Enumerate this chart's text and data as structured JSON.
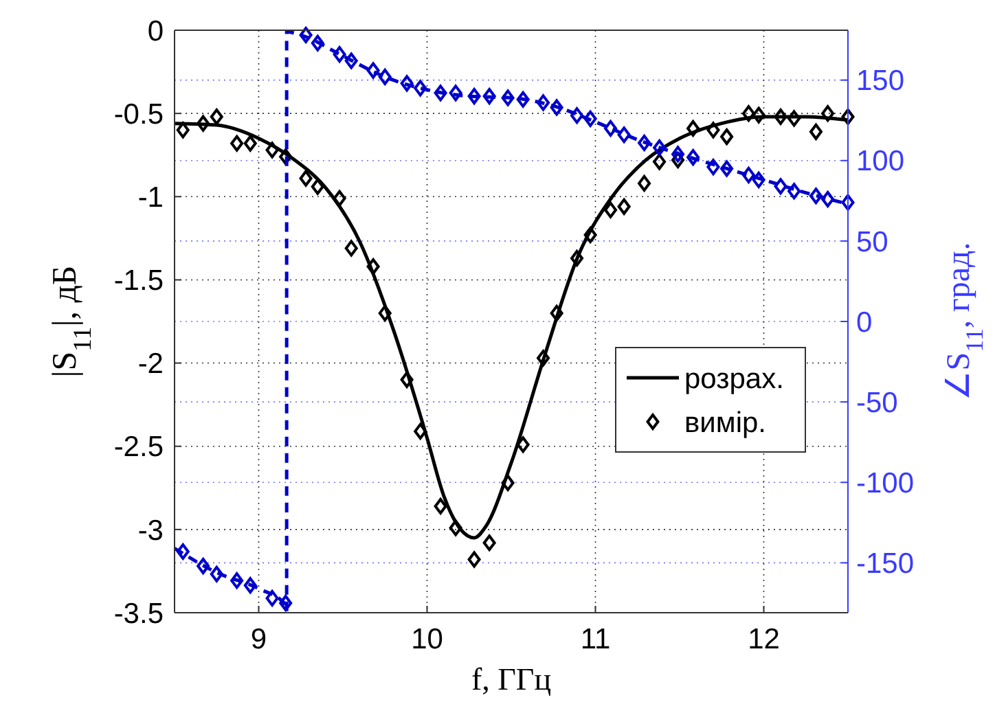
{
  "chart_data": {
    "type": "line",
    "xlabel": "f, ГГц",
    "ylabel": "|S$_{11}$|, дБ",
    "y2label": "∠S$_{11}$, град.",
    "xlim": [
      8.5,
      12.5
    ],
    "xticks": [
      9,
      10,
      11,
      12
    ],
    "ylim": [
      -3.5,
      0
    ],
    "yticks": [
      -3.5,
      -3,
      -2.5,
      -2,
      -1.5,
      -1,
      -0.5,
      0
    ],
    "y2lim": [
      -181,
      181
    ],
    "y2ticks": [
      -150,
      -100,
      -50,
      0,
      50,
      100,
      150
    ],
    "grid": true,
    "legend": "right",
    "series": [
      {
        "name": "розрах.",
        "color": "#000000",
        "line_style": "solid",
        "marker": "none",
        "x": [
          8.5,
          8.75,
          9.0,
          9.2,
          9.4,
          9.6,
          9.8,
          10.0,
          10.1,
          10.2,
          10.28,
          10.35,
          10.5,
          10.7,
          10.9,
          11.1,
          11.3,
          11.5,
          11.75,
          12.0,
          12.25,
          12.5
        ],
        "values": [
          -0.56,
          -0.57,
          -0.65,
          -0.77,
          -0.95,
          -1.27,
          -1.8,
          -2.45,
          -2.8,
          -3.0,
          -3.05,
          -2.98,
          -2.6,
          -1.95,
          -1.35,
          -1.0,
          -0.78,
          -0.65,
          -0.56,
          -0.52,
          -0.52,
          -0.54
        ]
      },
      {
        "name": "вимір.",
        "type": "scatter",
        "color": "#000000",
        "marker": "diamond",
        "x": [
          8.55,
          8.67,
          8.75,
          8.87,
          8.95,
          9.08,
          9.16,
          9.28,
          9.35,
          9.48,
          9.55,
          9.68,
          9.75,
          9.88,
          9.96,
          10.08,
          10.17,
          10.28,
          10.37,
          10.48,
          10.57,
          10.69,
          10.77,
          10.89,
          10.97,
          11.09,
          11.17,
          11.29,
          11.38,
          11.49,
          11.58,
          11.7,
          11.78,
          11.91,
          11.97,
          12.1,
          12.18,
          12.31,
          12.38,
          12.5
        ],
        "values": [
          -0.6,
          -0.56,
          -0.52,
          -0.68,
          -0.68,
          -0.72,
          -0.76,
          -0.89,
          -0.94,
          -1.01,
          -1.31,
          -1.42,
          -1.7,
          -2.1,
          -2.41,
          -2.86,
          -2.99,
          -3.18,
          -3.08,
          -2.72,
          -2.49,
          -1.97,
          -1.7,
          -1.37,
          -1.23,
          -1.08,
          -1.06,
          -0.92,
          -0.79,
          -0.78,
          -0.59,
          -0.6,
          -0.64,
          -0.5,
          -0.51,
          -0.52,
          -0.53,
          -0.61,
          -0.5,
          -0.52
        ]
      },
      {
        "axis": "y2",
        "color": "#0000cc",
        "line_style": "dashed",
        "marker": "none",
        "x": [
          8.5,
          8.75,
          9.0,
          9.16,
          9.166,
          9.166,
          9.25,
          9.5,
          9.75,
          10.0,
          10.25,
          10.5,
          10.75,
          11.0,
          11.25,
          11.5,
          11.75,
          12.0,
          12.25,
          12.5
        ],
        "values": [
          -141,
          -156,
          -166,
          -176,
          -180,
          180,
          178,
          165,
          152,
          144,
          140,
          139,
          134,
          124,
          113,
          104,
          96,
          88,
          80,
          73
        ]
      },
      {
        "type": "scatter",
        "axis": "y2",
        "color": "#0000cc",
        "marker": "diamond",
        "x": [
          8.55,
          8.67,
          8.75,
          8.87,
          8.95,
          9.08,
          9.16,
          9.28,
          9.35,
          9.48,
          9.55,
          9.68,
          9.75,
          9.88,
          9.96,
          10.08,
          10.17,
          10.28,
          10.37,
          10.48,
          10.57,
          10.69,
          10.77,
          10.89,
          10.97,
          11.09,
          11.17,
          11.29,
          11.38,
          11.49,
          11.58,
          11.7,
          11.78,
          11.91,
          11.97,
          12.1,
          12.18,
          12.31,
          12.38,
          12.5
        ],
        "values": [
          -143,
          -152,
          -157,
          -161,
          -164,
          -172,
          -175,
          178,
          173,
          166,
          162,
          156,
          152,
          148,
          145,
          142,
          142,
          140,
          140,
          139,
          138,
          136,
          133,
          128,
          126,
          120,
          116,
          111,
          108,
          104,
          102,
          96,
          95,
          91,
          88,
          84,
          81,
          78,
          76,
          74
        ]
      }
    ]
  }
}
